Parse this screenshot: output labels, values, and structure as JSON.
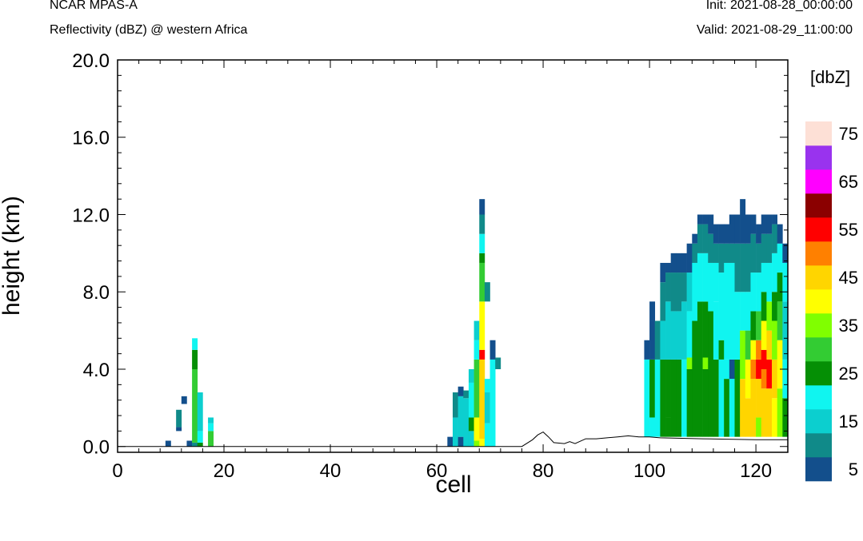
{
  "header": {
    "model": "NCAR MPAS-A",
    "field": "Reflectivity (dBZ) @ western Africa",
    "init": "Init: 2021-08-28_00:00:00",
    "valid": "Valid: 2021-08-29_11:00:00"
  },
  "chart_data": {
    "type": "heatmap",
    "title": "",
    "xlabel": "cell",
    "ylabel": "height (km)",
    "xlim": [
      0,
      126
    ],
    "ylim": [
      -0.3,
      20.0
    ],
    "x_ticks": [
      "0",
      "20",
      "40",
      "60",
      "80",
      "100",
      "120"
    ],
    "x_tick_values": [
      0,
      20,
      40,
      60,
      80,
      100,
      120
    ],
    "y_ticks": [
      "0.0",
      "4.0",
      "8.0",
      "12.0",
      "16.0",
      "20.0"
    ],
    "y_tick_values": [
      0,
      4,
      8,
      12,
      16,
      20
    ],
    "colorbar": {
      "title": "[dbZ]",
      "colors": [
        "#134f8c",
        "#108a89",
        "#0ccfcf",
        "#10f5f0",
        "#058f05",
        "#33cc33",
        "#80ff00",
        "#ffff00",
        "#ffd500",
        "#ff8000",
        "#ff0000",
        "#8b0000",
        "#ff00ff",
        "#9933ee",
        "#fde0d6"
      ],
      "labels": [
        "5",
        "15",
        "25",
        "35",
        "45",
        "55",
        "65",
        "75"
      ]
    },
    "terrain": [
      [
        0,
        0
      ],
      [
        76,
        0
      ],
      [
        78,
        0.35
      ],
      [
        79,
        0.6
      ],
      [
        80,
        0.75
      ],
      [
        81,
        0.5
      ],
      [
        82,
        0.2
      ],
      [
        84,
        0.15
      ],
      [
        85,
        0.25
      ],
      [
        86,
        0.15
      ],
      [
        88,
        0.4
      ],
      [
        90,
        0.4
      ],
      [
        92,
        0.45
      ],
      [
        94,
        0.5
      ],
      [
        96,
        0.55
      ],
      [
        98,
        0.5
      ],
      [
        100,
        0.5
      ],
      [
        102,
        0.45
      ],
      [
        110,
        0.4
      ],
      [
        120,
        0.35
      ],
      [
        126,
        0.35
      ]
    ],
    "columns": [
      {
        "x": 9,
        "levels": [
          [
            0.0,
            0.3,
            0
          ]
        ]
      },
      {
        "x": 11,
        "levels": [
          [
            0.8,
            1.0,
            0
          ],
          [
            1.0,
            1.9,
            1
          ]
        ]
      },
      {
        "x": 12,
        "levels": [
          [
            2.2,
            2.6,
            0
          ]
        ]
      },
      {
        "x": 13,
        "levels": [
          [
            0.0,
            0.3,
            0
          ]
        ]
      },
      {
        "x": 14,
        "levels": [
          [
            0.0,
            0.2,
            1
          ],
          [
            0.2,
            4.0,
            5
          ],
          [
            4.0,
            5.0,
            4
          ],
          [
            5.0,
            5.6,
            3
          ]
        ]
      },
      {
        "x": 15,
        "levels": [
          [
            0.0,
            0.2,
            4
          ],
          [
            0.2,
            0.8,
            3
          ],
          [
            0.8,
            2.8,
            2
          ]
        ]
      },
      {
        "x": 17,
        "levels": [
          [
            0.0,
            0.8,
            5
          ],
          [
            0.8,
            1.2,
            3
          ],
          [
            1.2,
            1.5,
            2
          ]
        ]
      },
      {
        "x": 62,
        "levels": [
          [
            0.0,
            0.5,
            0
          ]
        ]
      },
      {
        "x": 63,
        "levels": [
          [
            0.0,
            1.5,
            2
          ],
          [
            1.5,
            2.8,
            1
          ]
        ]
      },
      {
        "x": 64,
        "levels": [
          [
            0.0,
            0.5,
            0
          ],
          [
            0.5,
            2.6,
            2
          ],
          [
            2.6,
            3.1,
            0
          ]
        ]
      },
      {
        "x": 65,
        "levels": [
          [
            0.0,
            2.5,
            2
          ],
          [
            2.5,
            2.9,
            1
          ]
        ]
      },
      {
        "x": 66,
        "levels": [
          [
            0.0,
            0.8,
            2
          ],
          [
            0.8,
            1.5,
            4
          ],
          [
            1.5,
            3.3,
            3
          ],
          [
            3.3,
            4.0,
            2
          ]
        ]
      },
      {
        "x": 67,
        "levels": [
          [
            0.0,
            0.3,
            6
          ],
          [
            0.3,
            1.5,
            7
          ],
          [
            1.5,
            4.5,
            5
          ],
          [
            4.5,
            5.5,
            3
          ],
          [
            5.5,
            6.5,
            2
          ]
        ]
      },
      {
        "x": 68,
        "levels": [
          [
            0.0,
            0.4,
            7
          ],
          [
            0.4,
            4.5,
            8
          ],
          [
            4.5,
            5.0,
            10
          ],
          [
            5.0,
            7.5,
            7
          ],
          [
            7.5,
            9.5,
            5
          ],
          [
            9.5,
            10.0,
            4
          ],
          [
            10.0,
            11.0,
            3
          ],
          [
            11.0,
            12.0,
            1
          ],
          [
            12.0,
            12.8,
            0
          ]
        ]
      },
      {
        "x": 69,
        "levels": [
          [
            0.0,
            1.2,
            3
          ],
          [
            1.2,
            2.8,
            2
          ],
          [
            2.8,
            3.5,
            3
          ],
          [
            7.5,
            8.5,
            1
          ]
        ]
      },
      {
        "x": 70,
        "levels": [
          [
            0.0,
            4.5,
            3
          ],
          [
            4.5,
            5.5,
            0
          ]
        ]
      },
      {
        "x": 71,
        "levels": [
          [
            4.0,
            4.6,
            1
          ]
        ]
      },
      {
        "x": 99,
        "levels": [
          [
            0.5,
            4.5,
            3
          ],
          [
            4.5,
            5.5,
            0
          ]
        ]
      },
      {
        "x": 100,
        "levels": [
          [
            0.5,
            1.5,
            3
          ],
          [
            1.5,
            4.5,
            4
          ],
          [
            4.5,
            6.5,
            0
          ],
          [
            6.5,
            7.5,
            0
          ]
        ]
      },
      {
        "x": 101,
        "levels": [
          [
            0.5,
            4.5,
            3
          ],
          [
            4.5,
            6.5,
            1
          ]
        ]
      },
      {
        "x": 102,
        "levels": [
          [
            0.5,
            4.5,
            4
          ],
          [
            4.5,
            6.5,
            2
          ],
          [
            6.5,
            8.5,
            1
          ],
          [
            8.5,
            9.5,
            0
          ]
        ]
      },
      {
        "x": 103,
        "levels": [
          [
            0.5,
            1.5,
            4
          ],
          [
            1.5,
            4.5,
            4
          ],
          [
            4.5,
            7.5,
            2
          ],
          [
            7.5,
            9.0,
            1
          ],
          [
            9.0,
            9.5,
            0
          ]
        ]
      },
      {
        "x": 104,
        "levels": [
          [
            0.5,
            4.5,
            4
          ],
          [
            4.5,
            7.0,
            2
          ],
          [
            7.0,
            9.0,
            1
          ],
          [
            9.0,
            10.0,
            0
          ]
        ]
      },
      {
        "x": 105,
        "levels": [
          [
            0.5,
            4.5,
            4
          ],
          [
            4.5,
            7.0,
            2
          ],
          [
            7.0,
            9.0,
            1
          ],
          [
            9.0,
            10.0,
            0
          ]
        ]
      },
      {
        "x": 106,
        "levels": [
          [
            0.5,
            4.5,
            3
          ],
          [
            4.5,
            7.5,
            2
          ],
          [
            7.5,
            9.0,
            1
          ],
          [
            9.0,
            10.0,
            0
          ]
        ]
      },
      {
        "x": 107,
        "levels": [
          [
            0.5,
            4.0,
            4
          ],
          [
            4.0,
            4.6,
            6
          ],
          [
            4.6,
            7.0,
            3
          ],
          [
            7.0,
            9.0,
            2
          ],
          [
            9.0,
            10.5,
            0
          ]
        ]
      },
      {
        "x": 108,
        "levels": [
          [
            0.5,
            6.5,
            4
          ],
          [
            6.5,
            9.5,
            3
          ],
          [
            9.5,
            10.5,
            1
          ],
          [
            10.5,
            11.0,
            0
          ]
        ]
      },
      {
        "x": 109,
        "levels": [
          [
            0.5,
            7.5,
            4
          ],
          [
            7.5,
            10.0,
            3
          ],
          [
            10.0,
            11.5,
            1
          ],
          [
            11.5,
            12.0,
            0
          ]
        ]
      },
      {
        "x": 110,
        "levels": [
          [
            0.5,
            4.0,
            4
          ],
          [
            4.0,
            4.6,
            6
          ],
          [
            4.6,
            7.5,
            4
          ],
          [
            7.5,
            10.0,
            3
          ],
          [
            10.0,
            11.5,
            1
          ],
          [
            11.5,
            12.0,
            0
          ]
        ]
      },
      {
        "x": 111,
        "levels": [
          [
            0.5,
            7.0,
            4
          ],
          [
            7.0,
            9.5,
            3
          ],
          [
            9.5,
            11.0,
            1
          ],
          [
            11.0,
            12.0,
            0
          ]
        ]
      },
      {
        "x": 112,
        "levels": [
          [
            0.5,
            4.5,
            4
          ],
          [
            4.5,
            7.5,
            3
          ],
          [
            7.5,
            9.5,
            3
          ],
          [
            9.5,
            10.5,
            1
          ],
          [
            10.5,
            11.5,
            0
          ]
        ]
      },
      {
        "x": 113,
        "levels": [
          [
            0.5,
            4.5,
            3
          ],
          [
            4.5,
            5.5,
            4
          ],
          [
            5.5,
            9.0,
            3
          ],
          [
            9.0,
            10.5,
            1
          ],
          [
            10.5,
            11.5,
            0
          ]
        ]
      },
      {
        "x": 114,
        "levels": [
          [
            0.5,
            3.5,
            4
          ],
          [
            3.5,
            4.5,
            3
          ],
          [
            4.5,
            9.5,
            3
          ],
          [
            9.5,
            10.5,
            1
          ],
          [
            10.5,
            11.5,
            0
          ]
        ]
      },
      {
        "x": 115,
        "levels": [
          [
            0.5,
            3.5,
            3
          ],
          [
            3.5,
            4.5,
            0
          ],
          [
            4.5,
            9.5,
            3
          ],
          [
            9.5,
            10.5,
            1
          ],
          [
            10.5,
            12.0,
            0
          ]
        ]
      },
      {
        "x": 116,
        "levels": [
          [
            0.5,
            4.5,
            4
          ],
          [
            4.5,
            8.0,
            3
          ],
          [
            8.0,
            10.5,
            1
          ],
          [
            10.5,
            12.0,
            0
          ]
        ]
      },
      {
        "x": 117,
        "levels": [
          [
            0.5,
            3.5,
            8
          ],
          [
            3.5,
            6.0,
            6
          ],
          [
            6.0,
            8.0,
            3
          ],
          [
            8.0,
            10.5,
            1
          ],
          [
            10.5,
            12.8,
            0
          ]
        ]
      },
      {
        "x": 118,
        "levels": [
          [
            0.5,
            2.5,
            8
          ],
          [
            2.5,
            4.5,
            7
          ],
          [
            4.5,
            6.0,
            5
          ],
          [
            6.0,
            8.0,
            3
          ],
          [
            8.0,
            10.5,
            1
          ],
          [
            10.5,
            12.0,
            0
          ]
        ]
      },
      {
        "x": 119,
        "levels": [
          [
            0.5,
            3.5,
            8
          ],
          [
            3.5,
            4.5,
            9
          ],
          [
            4.5,
            5.5,
            7
          ],
          [
            5.5,
            7.0,
            4
          ],
          [
            7.0,
            9.0,
            3
          ],
          [
            9.0,
            11.0,
            1
          ],
          [
            11.0,
            12.0,
            0
          ]
        ]
      },
      {
        "x": 120,
        "levels": [
          [
            0.5,
            1.5,
            6
          ],
          [
            1.5,
            3.5,
            8
          ],
          [
            3.5,
            4.5,
            10
          ],
          [
            4.5,
            5.5,
            9
          ],
          [
            5.5,
            7.0,
            5
          ],
          [
            7.0,
            9.0,
            3
          ],
          [
            9.0,
            10.5,
            1
          ],
          [
            10.5,
            11.5,
            0
          ]
        ]
      },
      {
        "x": 121,
        "levels": [
          [
            0.5,
            3.0,
            8
          ],
          [
            3.0,
            4.0,
            9
          ],
          [
            4.0,
            5.0,
            10
          ],
          [
            5.0,
            6.5,
            7
          ],
          [
            6.5,
            8.0,
            4
          ],
          [
            8.0,
            9.5,
            3
          ],
          [
            9.5,
            11.0,
            1
          ],
          [
            11.0,
            12.0,
            0
          ]
        ]
      },
      {
        "x": 122,
        "levels": [
          [
            0.5,
            3.0,
            8
          ],
          [
            3.0,
            4.5,
            10
          ],
          [
            4.5,
            6.0,
            8
          ],
          [
            6.0,
            7.5,
            6
          ],
          [
            7.5,
            9.5,
            3
          ],
          [
            9.5,
            11.0,
            1
          ],
          [
            11.0,
            12.0,
            0
          ]
        ]
      },
      {
        "x": 123,
        "levels": [
          [
            0.5,
            2.5,
            7
          ],
          [
            2.5,
            4.5,
            8
          ],
          [
            4.5,
            6.5,
            6
          ],
          [
            6.5,
            8.0,
            4
          ],
          [
            8.0,
            10.0,
            3
          ],
          [
            10.0,
            11.5,
            1
          ],
          [
            11.5,
            12.0,
            0
          ]
        ]
      },
      {
        "x": 124,
        "levels": [
          [
            0.5,
            3.0,
            6
          ],
          [
            3.0,
            5.5,
            7
          ],
          [
            5.5,
            7.5,
            5
          ],
          [
            7.5,
            9.0,
            4
          ],
          [
            9.0,
            10.5,
            3
          ],
          [
            10.5,
            11.5,
            0
          ]
        ]
      },
      {
        "x": 125,
        "levels": [
          [
            0.5,
            2.5,
            4
          ],
          [
            2.5,
            4.5,
            3
          ],
          [
            4.5,
            7.5,
            2
          ],
          [
            7.5,
            9.5,
            3
          ],
          [
            9.5,
            10.5,
            0
          ]
        ]
      }
    ]
  }
}
